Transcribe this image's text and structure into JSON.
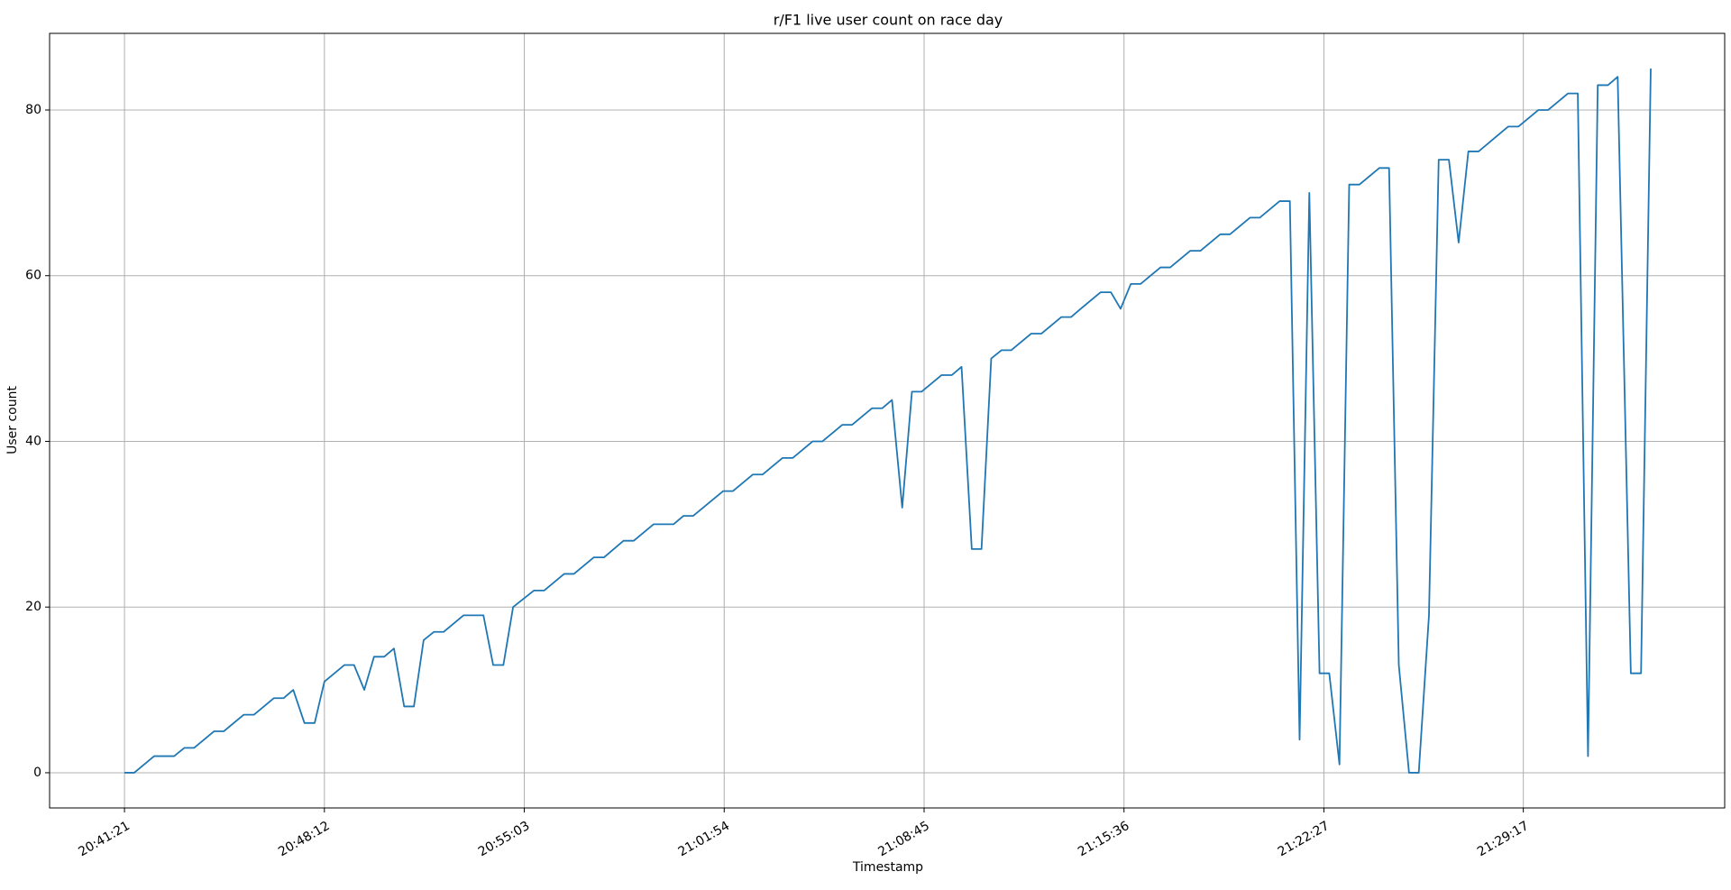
{
  "chart_data": {
    "type": "line",
    "title": "r/F1 live user count on race day",
    "x_label": "Timestamp",
    "y_label": "User count",
    "x": [
      "20:41:21",
      "20:41:41",
      "20:42:22",
      "20:43:03",
      "20:43:24",
      "20:43:44",
      "20:44:25",
      "20:44:45",
      "20:45:26",
      "20:45:47",
      "20:46:28",
      "20:46:48",
      "20:47:08",
      "20:47:31",
      "20:47:52",
      "20:48:12",
      "20:48:53",
      "20:49:13",
      "20:49:34",
      "20:49:54",
      "20:50:15",
      "20:50:35",
      "20:50:56",
      "20:51:16",
      "20:51:36",
      "20:51:57",
      "20:52:17",
      "20:52:58",
      "20:53:39",
      "20:53:59",
      "20:54:20",
      "20:54:40",
      "20:55:23",
      "20:55:44",
      "20:56:25",
      "20:56:45",
      "20:57:26",
      "20:57:47",
      "20:58:27",
      "20:58:48",
      "20:59:29",
      "21:00:10",
      "21:00:30",
      "21:00:50",
      "21:01:52",
      "21:02:12",
      "21:02:53",
      "21:03:13",
      "21:03:54",
      "21:04:15",
      "21:04:56",
      "21:05:16",
      "21:05:57",
      "21:06:17",
      "21:06:58",
      "21:07:19",
      "21:07:39",
      "21:08:00",
      "21:08:20",
      "21:08:40",
      "21:09:21",
      "21:09:42",
      "21:10:02",
      "21:10:23",
      "21:10:43",
      "21:11:03",
      "21:11:24",
      "21:11:44",
      "21:12:25",
      "21:12:46",
      "21:13:27",
      "21:13:47",
      "21:14:07",
      "21:14:48",
      "21:15:09",
      "21:15:29",
      "21:15:50",
      "21:16:10",
      "21:16:51",
      "21:17:11",
      "21:17:52",
      "21:18:13",
      "21:18:54",
      "21:19:14",
      "21:19:55",
      "21:20:15",
      "21:20:56",
      "21:21:17",
      "21:21:37",
      "21:21:57",
      "21:22:18",
      "21:22:38",
      "21:22:59",
      "21:23:19",
      "21:23:40",
      "21:24:21",
      "21:24:41",
      "21:25:01",
      "21:25:22",
      "21:25:42",
      "21:26:03",
      "21:26:23",
      "21:26:44",
      "21:27:04",
      "21:27:24",
      "21:27:45",
      "21:28:46",
      "21:29:07",
      "21:29:48",
      "21:30:08",
      "21:30:49",
      "21:31:09",
      "21:31:30",
      "21:31:50",
      "21:32:11",
      "21:32:31",
      "21:32:58",
      "21:33:19",
      "21:33:39"
    ],
    "series": [
      {
        "name": "User count",
        "color": "#1f77b4",
        "values": [
          0,
          0,
          2,
          2,
          3,
          3,
          5,
          5,
          7,
          7,
          9,
          9,
          10,
          6,
          6,
          11,
          13,
          13,
          10,
          14,
          14,
          15,
          8,
          8,
          16,
          17,
          17,
          19,
          19,
          13,
          13,
          20,
          22,
          22,
          24,
          24,
          26,
          26,
          28,
          28,
          30,
          30,
          31,
          31,
          34,
          34,
          36,
          36,
          38,
          38,
          40,
          40,
          42,
          42,
          44,
          44,
          45,
          32,
          46,
          46,
          48,
          48,
          49,
          27,
          27,
          50,
          51,
          51,
          53,
          53,
          55,
          55,
          56,
          58,
          58,
          56,
          59,
          59,
          61,
          61,
          63,
          63,
          65,
          65,
          67,
          67,
          69,
          69,
          4,
          70,
          12,
          12,
          1,
          71,
          71,
          73,
          73,
          13,
          0,
          0,
          19,
          74,
          74,
          64,
          75,
          75,
          78,
          78,
          80,
          80,
          82,
          82,
          2,
          83,
          83,
          84,
          12,
          12,
          85
        ]
      }
    ],
    "xlim": [
      "20:38:47",
      "21:36:11"
    ],
    "xticks": [
      "20:41:21",
      "20:48:12",
      "20:55:03",
      "21:01:54",
      "21:08:45",
      "21:15:36",
      "21:22:27",
      "21:29:17"
    ],
    "ylim": [
      -4.25,
      89.25
    ],
    "yticks": [
      0,
      20,
      40,
      60,
      80
    ],
    "grid": true
  }
}
